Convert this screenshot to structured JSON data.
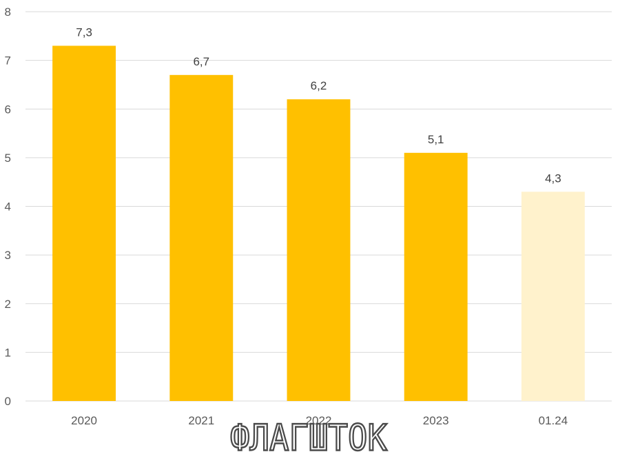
{
  "chart_data": {
    "type": "bar",
    "title": "",
    "xlabel": "",
    "ylabel": "",
    "categories": [
      "2020",
      "2021",
      "2022",
      "2023",
      "01.24"
    ],
    "values": [
      7.3,
      6.7,
      6.2,
      5.1,
      4.3
    ],
    "data_labels": [
      "7,3",
      "6,7",
      "6,2",
      "5,1",
      "4,3"
    ],
    "bar_colors": [
      "#ffc000",
      "#ffc000",
      "#ffc000",
      "#ffc000",
      "#fff2cc"
    ],
    "ylim": [
      0,
      8
    ],
    "yticks": [
      0,
      1,
      2,
      3,
      4,
      5,
      6,
      7,
      8
    ],
    "grid": true,
    "legend": "none"
  },
  "watermark": {
    "text": "ФЛАГШТОК"
  }
}
